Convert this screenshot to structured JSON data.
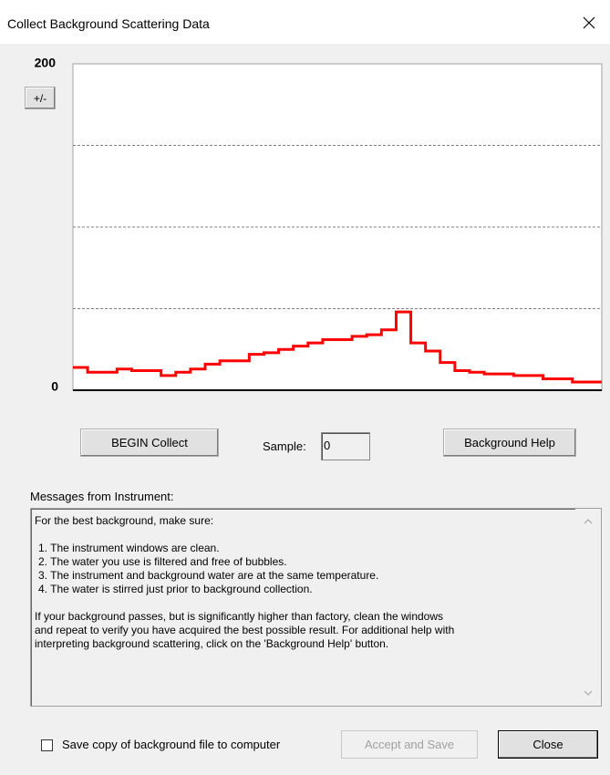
{
  "window": {
    "title": "Collect Background Scattering Data"
  },
  "chart_data": {
    "type": "step",
    "values": [
      14,
      11,
      11,
      13,
      12,
      12,
      9,
      11,
      13,
      16,
      18,
      18,
      22,
      23,
      25,
      27,
      29,
      31,
      31,
      33,
      34,
      37,
      48,
      29,
      24,
      17,
      12,
      11,
      10,
      10,
      9,
      9,
      7,
      7,
      5,
      5
    ],
    "color": "#ff0000",
    "ylim": [
      0,
      200
    ],
    "yticks": [
      0,
      200
    ],
    "grid_lines": [
      50,
      100,
      150
    ]
  },
  "controls": {
    "scale_button": "+/-",
    "begin": "BEGIN Collect",
    "sample_label": "Sample:",
    "sample_value": "0",
    "help": "Background Help"
  },
  "messages": {
    "label": "Messages from Instrument:",
    "intro": "For the best background, make sure:",
    "items": [
      "1.  The instrument windows are clean.",
      "2.  The water you use is filtered and free of bubbles.",
      "3.  The instrument and background water are at the same temperature.",
      "4.  The water is stirred just prior to background collection."
    ],
    "outro": [
      "If your background passes, but is significantly higher than factory, clean the windows",
      "and repeat to verify you have acquired the best possible result. For additional help with",
      "interpreting background scattering, click on the 'Background Help' button."
    ]
  },
  "footer": {
    "save_copy": "Save copy of background file to computer",
    "accept": "Accept and Save",
    "close": "Close"
  }
}
